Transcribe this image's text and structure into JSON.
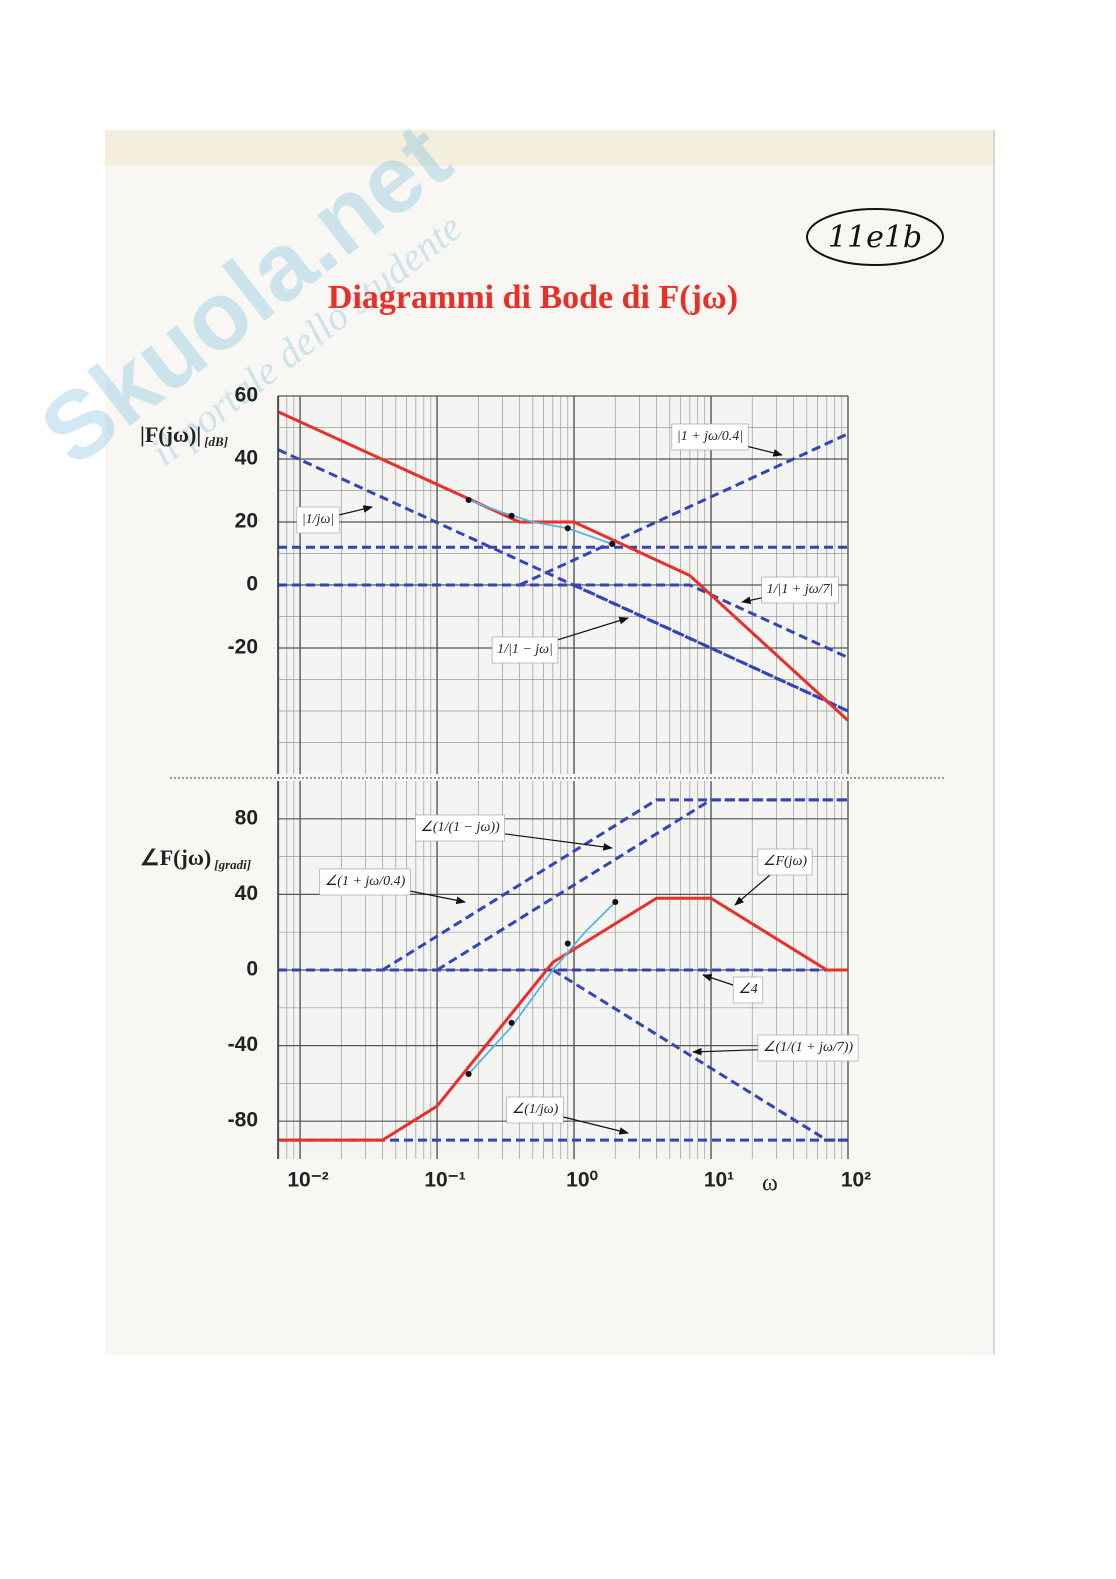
{
  "page": {
    "title": "Diagrammi di Bode di F(jω)",
    "note": "11e1b",
    "watermark": {
      "brand": "Skuola.net",
      "tagline": "il portale dello studente"
    }
  },
  "chart_data": [
    {
      "type": "line",
      "ylabel": "|F(jω)|",
      "ylabel_unit": "[dB]",
      "xscale": "log",
      "xlim": [
        0.0069,
        100
      ],
      "ylim": [
        -60,
        60
      ],
      "yticks": [
        -20,
        0,
        20,
        40,
        60
      ],
      "grid": true,
      "series": [
        {
          "color": "#e8302a",
          "style": "solid",
          "x": [
            0.0069,
            0.4,
            1,
            7,
            100
          ],
          "values": [
            55,
            20,
            20,
            3,
            -43
          ]
        },
        {
          "color": "#5ab4e0",
          "style": "solid",
          "x": [
            0.17,
            0.3,
            0.5,
            0.9,
            1.9
          ],
          "values": [
            27,
            23,
            20,
            18,
            13
          ]
        },
        {
          "color": "#3344bb",
          "style": "dashed",
          "x": [
            0.0069,
            100
          ],
          "values": [
            12,
            12
          ]
        },
        {
          "name": "|1/jω|",
          "color": "#3344bb",
          "style": "dashed",
          "x": [
            0.0069,
            100
          ],
          "values": [
            43,
            -40
          ]
        },
        {
          "name": "|1 + jω/0.4|",
          "color": "#3344bb",
          "style": "dashed",
          "x": [
            0.4,
            100
          ],
          "values": [
            0,
            48
          ]
        },
        {
          "name": "1/|1 + jω/7|",
          "color": "#3344bb",
          "style": "dashed",
          "x": [
            0.0069,
            7,
            100
          ],
          "values": [
            0,
            0,
            -23
          ]
        },
        {
          "name": "1/|1 − jω|",
          "color": "#3344bb",
          "style": "dashed",
          "x": [
            1,
            100
          ],
          "values": [
            0,
            -40
          ]
        }
      ],
      "points": {
        "color": "#111111",
        "x": [
          0.17,
          0.35,
          0.9,
          1.9
        ],
        "values": [
          27,
          22,
          18,
          13
        ]
      }
    },
    {
      "type": "line",
      "ylabel": "∠F(jω)",
      "ylabel_unit": "[gradi]",
      "xlabel": "ω",
      "xscale": "log",
      "xlim": [
        0.0069,
        100
      ],
      "ylim": [
        -100,
        100
      ],
      "yticks": [
        -80,
        -40,
        0,
        40,
        80
      ],
      "grid": true,
      "xticks": [
        {
          "value": 0.01,
          "label": "10⁻²"
        },
        {
          "value": 0.1,
          "label": "10⁻¹"
        },
        {
          "value": 1,
          "label": "10⁰"
        },
        {
          "value": 10,
          "label": "10¹"
        },
        {
          "value": 100,
          "label": "10²"
        }
      ],
      "series": [
        {
          "name": "∠F(jω)",
          "color": "#e8302a",
          "style": "solid",
          "x": [
            0.0069,
            0.04,
            0.1,
            0.7,
            4,
            10,
            70,
            100
          ],
          "values": [
            -90,
            -90,
            -72,
            4,
            38,
            38,
            0,
            0
          ]
        },
        {
          "color": "#5ab4e0",
          "style": "solid",
          "x": [
            0.17,
            0.35,
            0.7,
            1.2,
            2
          ],
          "values": [
            -55,
            -30,
            0,
            20,
            36
          ]
        },
        {
          "name": "∠(1 + jω/0.4)",
          "color": "#3344bb",
          "style": "dashed",
          "x": [
            0.04,
            4,
            100
          ],
          "values": [
            0,
            90,
            90
          ]
        },
        {
          "name": "∠(1/(1 − jω))",
          "color": "#3344bb",
          "style": "dashed",
          "x": [
            0.1,
            10,
            100
          ],
          "values": [
            0,
            90,
            90
          ]
        },
        {
          "name": "∠4",
          "color": "#3344bb",
          "style": "dashed",
          "x": [
            0.0069,
            100
          ],
          "values": [
            0,
            0
          ]
        },
        {
          "name": "∠(1/(1 + jω/7))",
          "color": "#3344bb",
          "style": "dashed",
          "x": [
            0.7,
            70,
            100
          ],
          "values": [
            0,
            -90,
            -90
          ]
        },
        {
          "name": "∠(1/jω)",
          "color": "#3344bb",
          "style": "dashed",
          "x": [
            0.0069,
            100
          ],
          "values": [
            -90,
            -90
          ]
        }
      ],
      "points": {
        "color": "#111111",
        "x": [
          0.17,
          0.35,
          0.9,
          2
        ],
        "values": [
          -55,
          -28,
          14,
          36
        ]
      }
    }
  ]
}
